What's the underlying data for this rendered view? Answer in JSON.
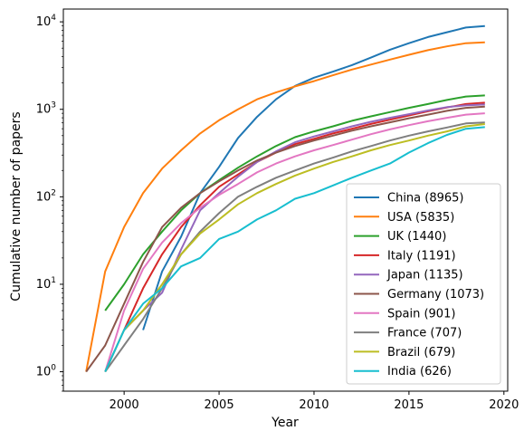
{
  "chart_data": {
    "type": "line",
    "title": "",
    "xlabel": "Year",
    "ylabel": "Cumulative number of papers",
    "yscale": "log",
    "xlim": [
      1996.8,
      2020.2
    ],
    "ylim": [
      0.6,
      14000
    ],
    "x_ticks": [
      2000,
      2005,
      2010,
      2015,
      2020
    ],
    "x_tick_labels": [
      "2000",
      "2005",
      "2010",
      "2015",
      "2020"
    ],
    "y_ticks": [
      1,
      10,
      100,
      1000,
      10000
    ],
    "y_tick_labels": [
      {
        "base": "10",
        "exp": "0"
      },
      {
        "base": "10",
        "exp": "1"
      },
      {
        "base": "10",
        "exp": "2"
      },
      {
        "base": "10",
        "exp": "3"
      },
      {
        "base": "10",
        "exp": "4"
      }
    ],
    "legend_position": "lower-right",
    "grid": false,
    "series": [
      {
        "name": "China (8965)",
        "color": "#1f77b4",
        "x": [
          2001,
          2002,
          2003,
          2004,
          2005,
          2006,
          2007,
          2008,
          2009,
          2010,
          2011,
          2012,
          2013,
          2014,
          2015,
          2016,
          2017,
          2018,
          2019
        ],
        "values": [
          3,
          14,
          35,
          110,
          220,
          470,
          820,
          1300,
          1850,
          2300,
          2700,
          3200,
          3900,
          4800,
          5700,
          6700,
          7600,
          8600,
          8965
        ]
      },
      {
        "name": "USA (5835)",
        "color": "#ff7f0e",
        "x": [
          1998,
          1999,
          2000,
          2001,
          2002,
          2003,
          2004,
          2005,
          2006,
          2007,
          2008,
          2009,
          2010,
          2011,
          2012,
          2013,
          2014,
          2015,
          2016,
          2017,
          2018,
          2019
        ],
        "values": [
          1,
          14,
          45,
          110,
          210,
          340,
          530,
          750,
          1000,
          1300,
          1560,
          1830,
          2100,
          2450,
          2850,
          3250,
          3700,
          4200,
          4750,
          5250,
          5700,
          5835
        ]
      },
      {
        "name": "UK (1440)",
        "color": "#2ca02c",
        "x": [
          1999,
          2000,
          2001,
          2002,
          2003,
          2004,
          2005,
          2006,
          2007,
          2008,
          2009,
          2010,
          2011,
          2012,
          2013,
          2014,
          2015,
          2016,
          2017,
          2018,
          2019
        ],
        "values": [
          5,
          10,
          22,
          40,
          70,
          110,
          155,
          215,
          290,
          380,
          480,
          560,
          640,
          740,
          830,
          930,
          1040,
          1150,
          1280,
          1400,
          1440
        ]
      },
      {
        "name": "Italy (1191)",
        "color": "#d62728",
        "x": [
          2000,
          2001,
          2002,
          2003,
          2004,
          2005,
          2006,
          2007,
          2008,
          2009,
          2010,
          2011,
          2012,
          2013,
          2014,
          2015,
          2016,
          2017,
          2018,
          2019
        ],
        "values": [
          3,
          9,
          22,
          45,
          80,
          130,
          180,
          250,
          320,
          400,
          460,
          530,
          600,
          680,
          760,
          850,
          950,
          1050,
          1150,
          1191
        ]
      },
      {
        "name": "Japan (1135)",
        "color": "#9467bd",
        "x": [
          1999,
          2000,
          2001,
          2002,
          2003,
          2004,
          2005,
          2006,
          2007,
          2008,
          2009,
          2010,
          2011,
          2012,
          2013,
          2014,
          2015,
          2016,
          2017,
          2018,
          2019
        ],
        "values": [
          1,
          3,
          5,
          8,
          25,
          70,
          110,
          170,
          250,
          330,
          420,
          490,
          560,
          640,
          720,
          800,
          880,
          970,
          1060,
          1110,
          1135
        ]
      },
      {
        "name": "Germany (1073)",
        "color": "#8c564b",
        "x": [
          1998,
          1999,
          2000,
          2001,
          2002,
          2003,
          2004,
          2005,
          2006,
          2007,
          2008,
          2009,
          2010,
          2011,
          2012,
          2013,
          2014,
          2015,
          2016,
          2017,
          2018,
          2019
        ],
        "values": [
          1,
          2,
          6,
          18,
          45,
          75,
          110,
          150,
          200,
          260,
          320,
          380,
          440,
          500,
          570,
          640,
          710,
          790,
          870,
          960,
          1040,
          1073
        ]
      },
      {
        "name": "Spain (901)",
        "color": "#e377c2",
        "x": [
          1999,
          2000,
          2001,
          2002,
          2003,
          2004,
          2005,
          2006,
          2007,
          2008,
          2009,
          2010,
          2011,
          2012,
          2013,
          2014,
          2015,
          2016,
          2017,
          2018,
          2019
        ],
        "values": [
          1,
          5,
          15,
          30,
          50,
          75,
          105,
          140,
          190,
          240,
          290,
          340,
          390,
          450,
          520,
          590,
          660,
          730,
          800,
          870,
          901
        ]
      },
      {
        "name": "France (707)",
        "color": "#7f7f7f",
        "x": [
          1999,
          2000,
          2001,
          2002,
          2003,
          2004,
          2005,
          2006,
          2007,
          2008,
          2009,
          2010,
          2011,
          2012,
          2013,
          2014,
          2015,
          2016,
          2017,
          2018,
          2019
        ],
        "values": [
          1,
          2,
          4,
          9,
          22,
          40,
          65,
          100,
          130,
          165,
          200,
          240,
          280,
          330,
          380,
          440,
          500,
          560,
          620,
          690,
          707
        ]
      },
      {
        "name": "Brazil (679)",
        "color": "#bcbd22",
        "x": [
          1999,
          2000,
          2001,
          2002,
          2003,
          2004,
          2005,
          2006,
          2007,
          2008,
          2009,
          2010,
          2011,
          2012,
          2013,
          2014,
          2015,
          2016,
          2017,
          2018,
          2019
        ],
        "values": [
          1,
          3,
          5,
          10,
          22,
          38,
          55,
          82,
          110,
          140,
          175,
          210,
          250,
          290,
          340,
          390,
          440,
          500,
          560,
          640,
          679
        ]
      },
      {
        "name": "India (626)",
        "color": "#17becf",
        "x": [
          1999,
          2000,
          2001,
          2002,
          2003,
          2004,
          2005,
          2006,
          2007,
          2008,
          2009,
          2010,
          2011,
          2012,
          2013,
          2014,
          2015,
          2016,
          2017,
          2018,
          2019
        ],
        "values": [
          1,
          3,
          6,
          9,
          16,
          20,
          33,
          40,
          55,
          70,
          95,
          110,
          135,
          165,
          200,
          240,
          320,
          410,
          510,
          600,
          626
        ]
      }
    ]
  }
}
